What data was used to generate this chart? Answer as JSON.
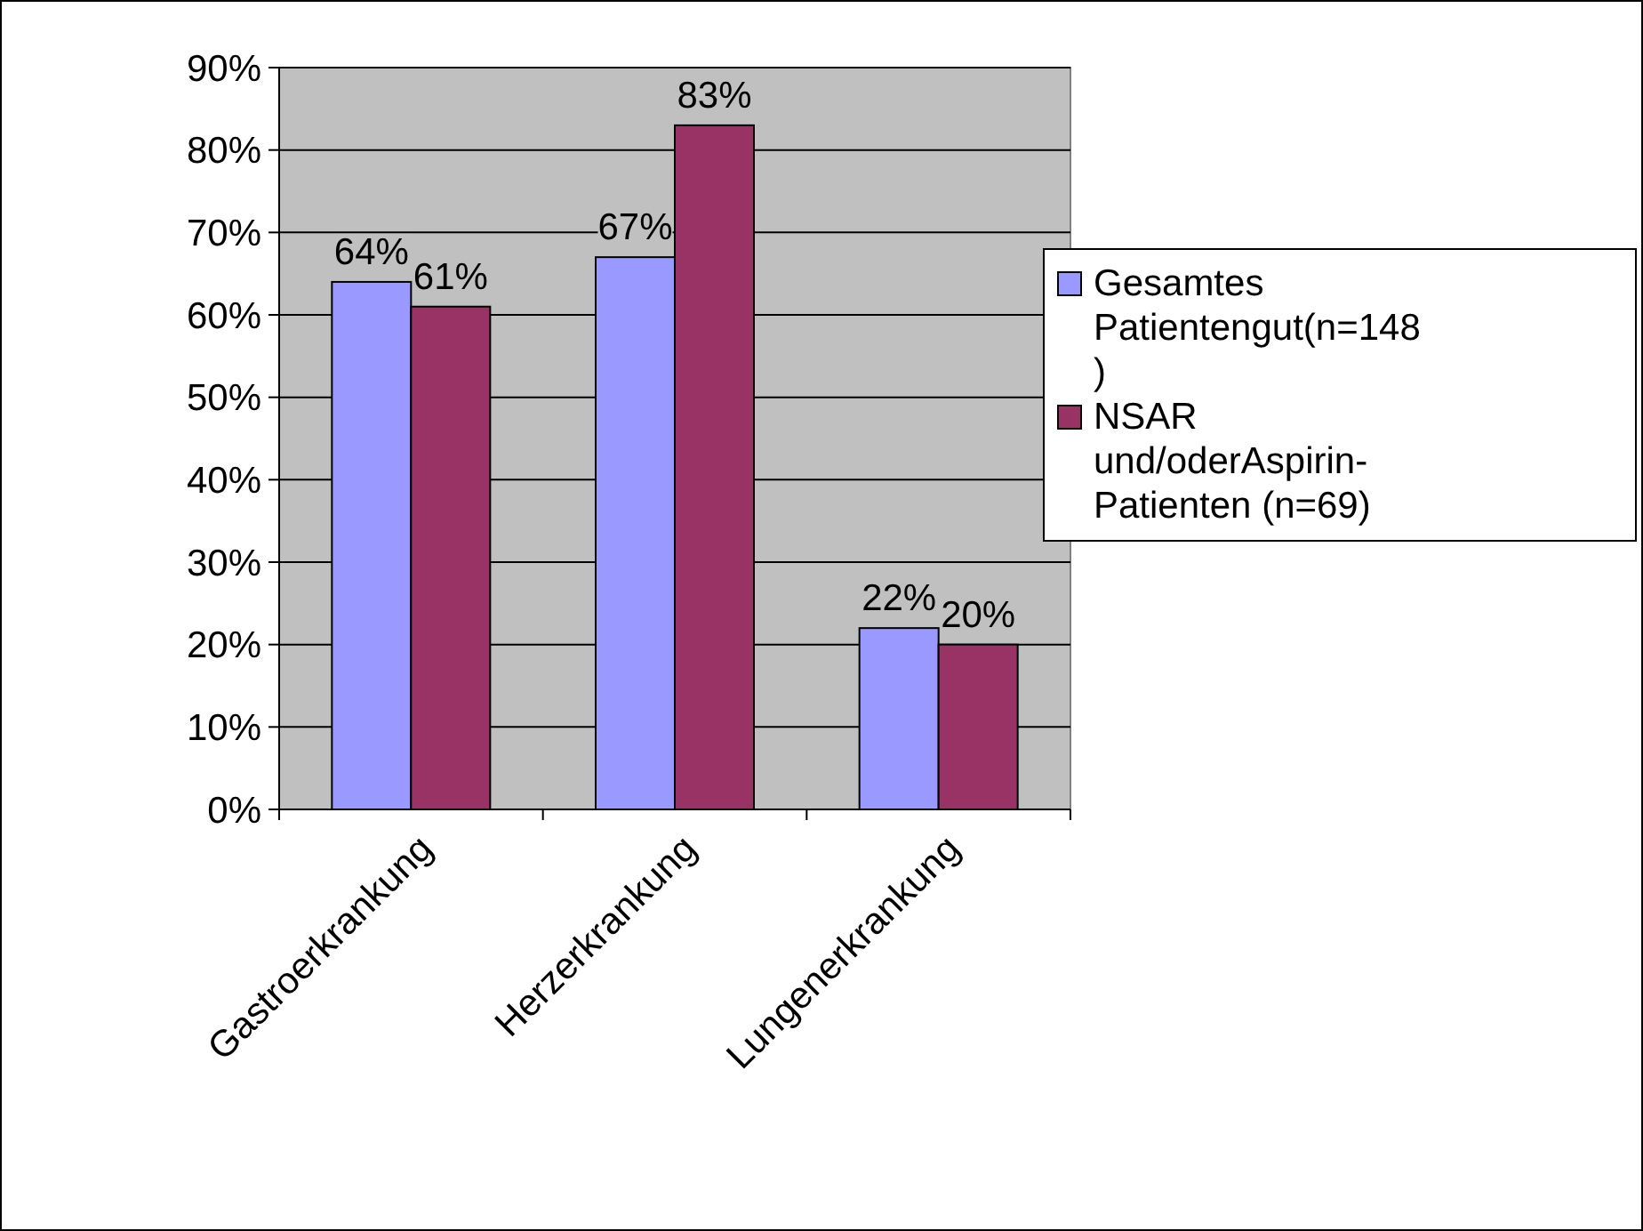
{
  "chart_data": {
    "type": "bar",
    "categories": [
      "Gastroerkrankung",
      "Herzerkrankung",
      "Lungenerkrankung"
    ],
    "series": [
      {
        "name": "Gesamtes Patientengut(n=148)",
        "color": "#9999ff",
        "values": [
          64,
          67,
          22
        ],
        "value_labels": [
          "64%",
          "67%",
          "22%"
        ]
      },
      {
        "name": "NSAR und/oderAspirin-Patienten (n=69)",
        "color": "#993366",
        "values": [
          61,
          83,
          20
        ],
        "value_labels": [
          "61%",
          "83%",
          "20%"
        ]
      }
    ],
    "ylim": [
      0,
      90
    ],
    "yticks": [
      {
        "value": 0,
        "label": "0%"
      },
      {
        "value": 10,
        "label": "10%"
      },
      {
        "value": 20,
        "label": "20%"
      },
      {
        "value": 30,
        "label": "30%"
      },
      {
        "value": 40,
        "label": "40%"
      },
      {
        "value": 50,
        "label": "50%"
      },
      {
        "value": 60,
        "label": "60%"
      },
      {
        "value": 70,
        "label": "70%"
      },
      {
        "value": 80,
        "label": "80%"
      },
      {
        "value": 90,
        "label": "90%"
      }
    ],
    "grid": "y",
    "legend": "right"
  }
}
